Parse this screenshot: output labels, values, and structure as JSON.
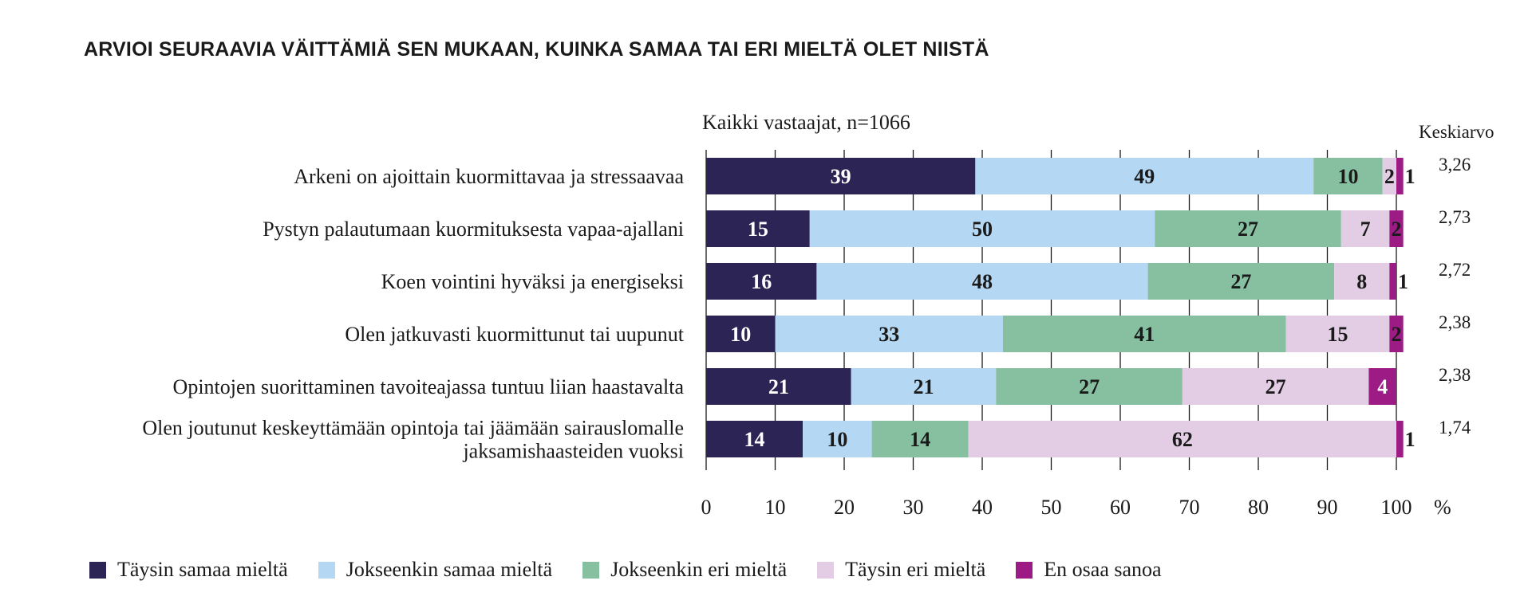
{
  "chart_data": {
    "type": "bar",
    "orientation": "horizontal",
    "stacked": true,
    "title": "ARVIOI SEURAAVIA VÄITTÄMIÄ SEN MUKAAN, KUINKA SAMAA TAI ERI MIELTÄ OLET NIISTÄ",
    "subtitle": "Kaikki vastaajat, n=1066",
    "mean_header": "Keskiarvo",
    "unit_label": "%",
    "xlim": [
      0,
      100
    ],
    "x_ticks": [
      0,
      10,
      20,
      30,
      40,
      50,
      60,
      70,
      80,
      90,
      100
    ],
    "grid": "vertical",
    "legend_position": "bottom",
    "categories": [
      [
        "Arkeni on ajoittain kuormittavaa ja stressaavaa"
      ],
      [
        "Pystyn palautumaan kuormituksesta vapaa-ajallani"
      ],
      [
        "Koen vointini hyväksi ja energiseksi"
      ],
      [
        "Olen jatkuvasti kuormittunut tai uupunut"
      ],
      [
        "Opintojen suorittaminen tavoiteajassa tuntuu liian haastavalta"
      ],
      [
        "Olen joutunut keskeyttämään opintoja tai jäämään sairauslomalle",
        "jaksamishaasteiden vuoksi"
      ]
    ],
    "series": [
      {
        "name": "Täysin samaa mieltä",
        "color": "#2b2455",
        "label_color": "#ffffff",
        "values": [
          39,
          15,
          16,
          10,
          21,
          14
        ]
      },
      {
        "name": "Jokseenkin samaa mieltä",
        "color": "#b4d8f3",
        "label_color": "#1a1a1a",
        "values": [
          49,
          50,
          48,
          33,
          21,
          10
        ]
      },
      {
        "name": "Jokseenkin eri mieltä",
        "color": "#87bfa1",
        "label_color": "#1a1a1a",
        "values": [
          10,
          27,
          27,
          41,
          27,
          14
        ]
      },
      {
        "name": "Täysin eri mieltä",
        "color": "#e3cde5",
        "label_color": "#1a1a1a",
        "values": [
          2,
          7,
          8,
          15,
          27,
          62
        ]
      },
      {
        "name": "En osaa sanoa",
        "color": "#9c1b84",
        "label_color": "#ffffff",
        "values": [
          1,
          2,
          1,
          2,
          4,
          1
        ]
      }
    ],
    "means": [
      "3,26",
      "2,73",
      "2,72",
      "2,38",
      "2,38",
      "1,74"
    ]
  }
}
